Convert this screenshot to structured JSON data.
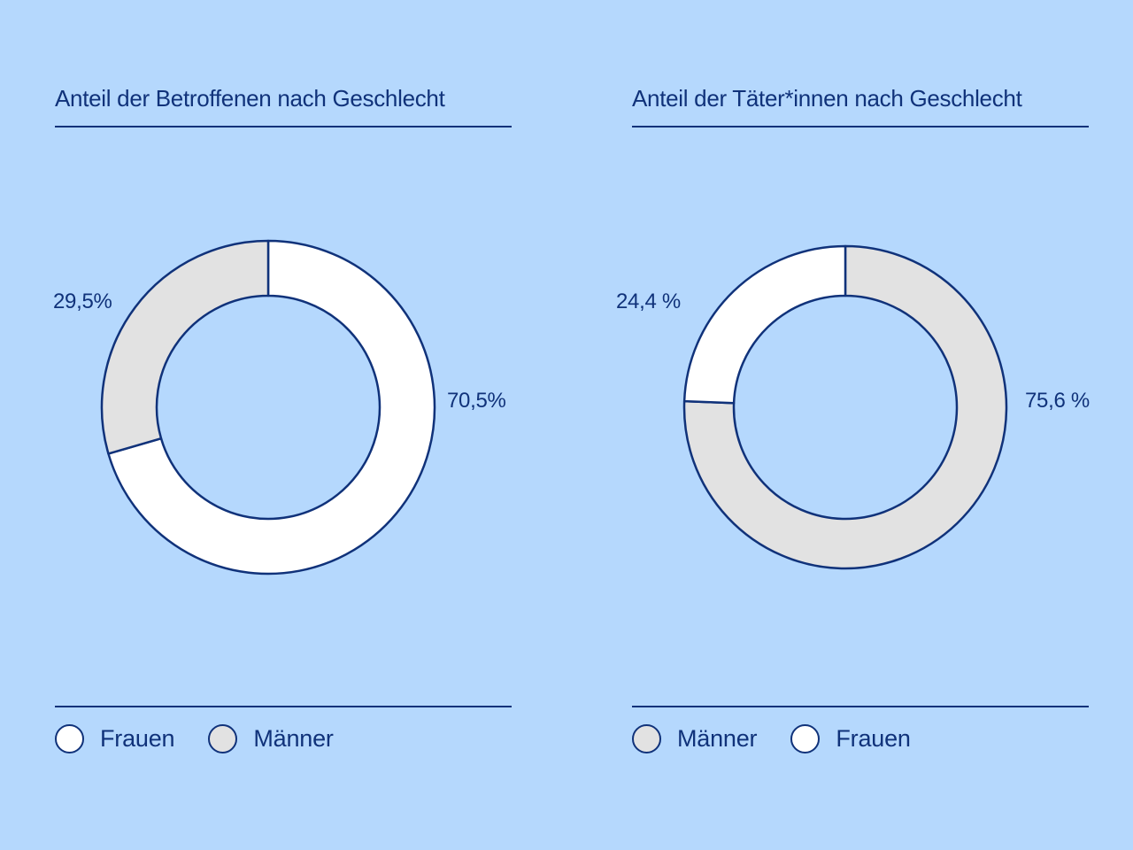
{
  "colors": {
    "background": "#b5d8fd",
    "ink": "#10327a",
    "frauen": "#ffffff",
    "maenner": "#e2e2e2"
  },
  "chart_data": [
    {
      "type": "pie",
      "title": "Anteil der Betroffenen nach Geschlecht",
      "donut": true,
      "slices": [
        {
          "name": "Frauen",
          "value": 70.5,
          "label": "70,5%",
          "color": "#ffffff"
        },
        {
          "name": "Männer",
          "value": 29.5,
          "label": "29,5%",
          "color": "#e2e2e2"
        }
      ],
      "legend": [
        {
          "name": "Frauen",
          "color": "#ffffff"
        },
        {
          "name": "Männer",
          "color": "#e2e2e2"
        }
      ],
      "legend_position": "bottom-left"
    },
    {
      "type": "pie",
      "title": "Anteil der Täter*innen nach Geschlecht",
      "donut": true,
      "slices": [
        {
          "name": "Männer",
          "value": 75.6,
          "label": "75,6 %",
          "color": "#e2e2e2"
        },
        {
          "name": "Frauen",
          "value": 24.4,
          "label": "24,4 %",
          "color": "#ffffff"
        }
      ],
      "legend": [
        {
          "name": "Männer",
          "color": "#e2e2e2"
        },
        {
          "name": "Frauen",
          "color": "#ffffff"
        }
      ],
      "legend_position": "bottom-left"
    }
  ]
}
